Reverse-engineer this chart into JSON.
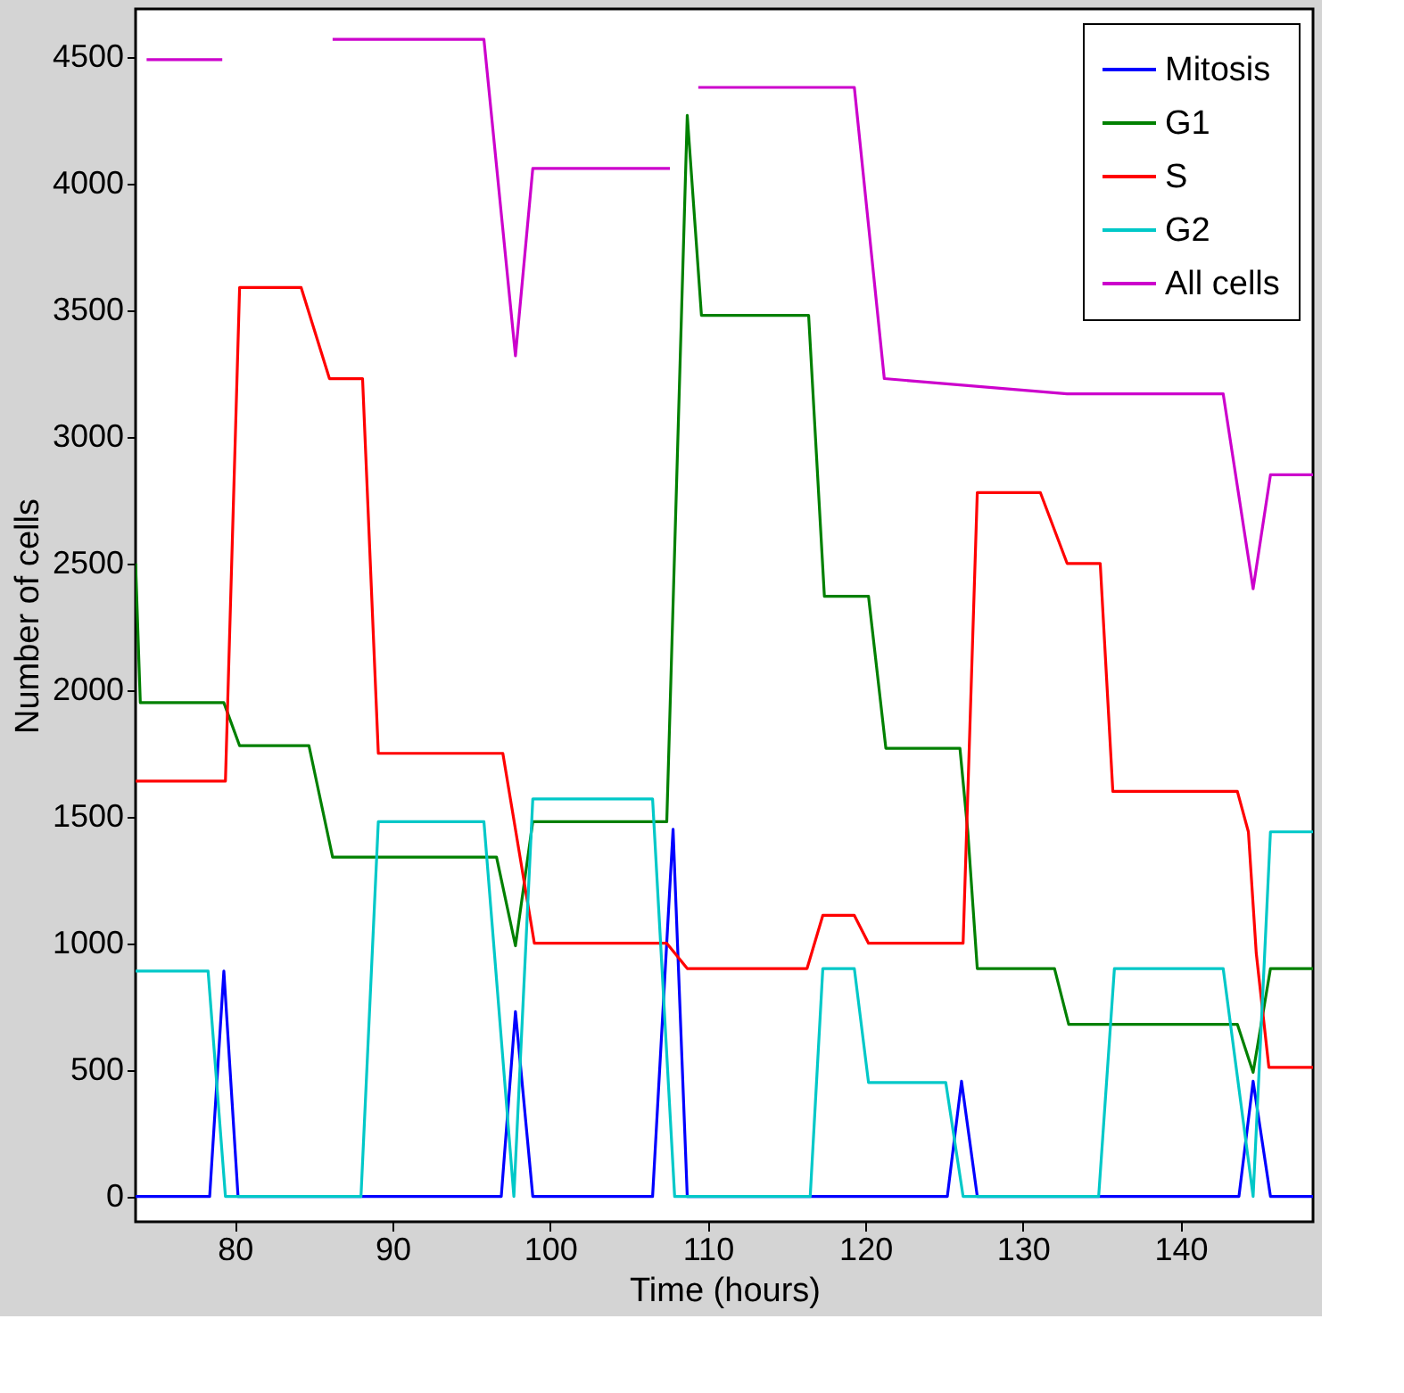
{
  "chart_data": {
    "type": "line",
    "xlabel": "Time (hours)",
    "ylabel": "Number of cells",
    "xlim": [
      73.7,
      148.4
    ],
    "ylim": [
      -100,
      4690
    ],
    "xticks": [
      80,
      90,
      100,
      110,
      120,
      130,
      140
    ],
    "yticks": [
      0,
      500,
      1000,
      1500,
      2000,
      2500,
      3000,
      3500,
      4000,
      4500
    ],
    "legend": "top right",
    "grid": false,
    "line_style": "solid",
    "marker": "none",
    "series": [
      {
        "name": "Mitosis",
        "color": "#0000ff",
        "x": [
          73.7,
          78.4,
          79.3,
          80.2,
          96.9,
          97.8,
          98.9,
          106.5,
          107.8,
          108.7,
          125.2,
          126.1,
          127.1,
          143.7,
          144.6,
          145.7,
          148.4
        ],
        "values": [
          0,
          0,
          890,
          0,
          0,
          730,
          0,
          0,
          1450,
          0,
          0,
          455,
          0,
          0,
          455,
          0,
          0
        ]
      },
      {
        "name": "G1",
        "color": "#008000",
        "x": [
          73.7,
          74.0,
          79.3,
          80.3,
          84.7,
          86.2,
          96.6,
          97.8,
          98.9,
          107.4,
          108.7,
          109.6,
          116.4,
          117.4,
          120.2,
          121.3,
          126.0,
          126.5,
          127.1,
          132.0,
          132.9,
          143.6,
          144.6,
          145.7,
          148.4
        ],
        "values": [
          2500,
          1950,
          1950,
          1780,
          1780,
          1340,
          1340,
          990,
          1480,
          1480,
          4270,
          3480,
          3480,
          2370,
          2370,
          1770,
          1770,
          1440,
          900,
          900,
          680,
          680,
          490,
          900,
          900
        ]
      },
      {
        "name": "S",
        "color": "#ff0000",
        "x": [
          73.7,
          79.4,
          80.3,
          84.2,
          86.0,
          88.1,
          89.1,
          97.0,
          99.0,
          107.4,
          108.7,
          116.3,
          117.3,
          119.3,
          120.2,
          126.2,
          127.1,
          131.1,
          132.8,
          134.9,
          135.7,
          143.6,
          144.3,
          144.8,
          145.6,
          148.4
        ],
        "values": [
          1640,
          1640,
          3590,
          3590,
          3230,
          3230,
          1750,
          1750,
          1000,
          1000,
          900,
          900,
          1110,
          1110,
          1000,
          1000,
          2780,
          2780,
          2500,
          2500,
          1600,
          1600,
          1440,
          960,
          510,
          510
        ]
      },
      {
        "name": "G2",
        "color": "#00c8c8",
        "x": [
          73.7,
          78.3,
          79.4,
          88.0,
          89.1,
          95.8,
          97.7,
          98.9,
          106.5,
          107.9,
          116.5,
          117.3,
          119.3,
          120.2,
          125.1,
          126.2,
          134.8,
          135.8,
          142.7,
          144.6,
          145.7,
          148.4
        ],
        "values": [
          890,
          890,
          0,
          0,
          1480,
          1480,
          0,
          1570,
          1570,
          0,
          0,
          900,
          900,
          450,
          450,
          0,
          0,
          900,
          900,
          0,
          1440,
          1440
        ]
      },
      {
        "name": "All cells",
        "color": "#cc00cc",
        "x": [
          74.4,
          79.2,
          82.5,
          86.2,
          95.8,
          97.8,
          98.9,
          107.6,
          108.2,
          109.4,
          119.3,
          121.2,
          132.8,
          142.7,
          144.6,
          145.7,
          148.4
        ],
        "values": [
          4490,
          4490,
          null,
          4570,
          4570,
          3320,
          4060,
          4060,
          null,
          4380,
          4380,
          3230,
          3170,
          3170,
          2400,
          2850,
          2850
        ]
      }
    ]
  }
}
